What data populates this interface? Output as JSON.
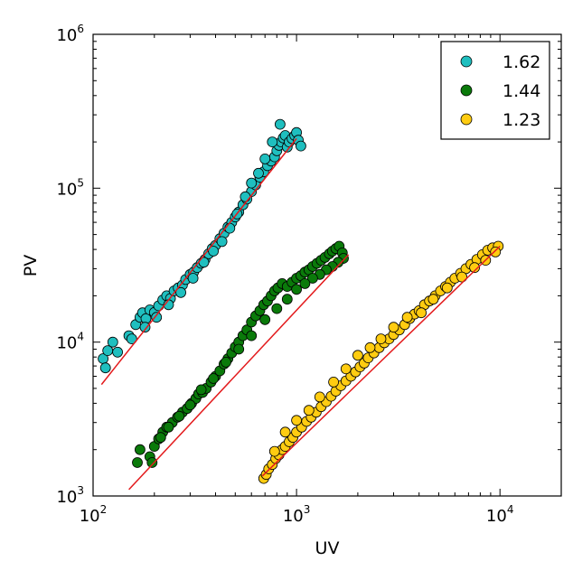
{
  "chart_data": {
    "type": "scatter",
    "title": "",
    "xlabel": "UV",
    "ylabel": "PV",
    "xscale": "log",
    "yscale": "log",
    "xlim": [
      100,
      20000
    ],
    "ylim": [
      1000,
      1000000
    ],
    "x_ticks": [
      {
        "base": "10",
        "exp": "2"
      },
      {
        "base": "10",
        "exp": "3"
      },
      {
        "base": "10",
        "exp": "4"
      }
    ],
    "y_ticks": [
      {
        "base": "10",
        "exp": "3"
      },
      {
        "base": "10",
        "exp": "4"
      },
      {
        "base": "10",
        "exp": "5"
      },
      {
        "base": "10",
        "exp": "6"
      }
    ],
    "legend_position": "top-right",
    "grid": false,
    "series": [
      {
        "name": "1.62",
        "color": "#1fbfbf",
        "fit_line": [
          [
            110,
            5300
          ],
          [
            1000,
            210000
          ]
        ],
        "points": [
          [
            112,
            7800
          ],
          [
            115,
            6800
          ],
          [
            118,
            8800
          ],
          [
            125,
            10000
          ],
          [
            132,
            8600
          ],
          [
            150,
            11000
          ],
          [
            155,
            10500
          ],
          [
            162,
            13000
          ],
          [
            170,
            14500
          ],
          [
            175,
            15500
          ],
          [
            182,
            14200
          ],
          [
            190,
            16200
          ],
          [
            200,
            15600
          ],
          [
            210,
            17200
          ],
          [
            220,
            18800
          ],
          [
            230,
            20000
          ],
          [
            240,
            19200
          ],
          [
            250,
            21500
          ],
          [
            262,
            22500
          ],
          [
            275,
            23500
          ],
          [
            285,
            25500
          ],
          [
            300,
            27500
          ],
          [
            312,
            28500
          ],
          [
            325,
            30500
          ],
          [
            340,
            32500
          ],
          [
            355,
            34500
          ],
          [
            370,
            37500
          ],
          [
            385,
            40500
          ],
          [
            400,
            42500
          ],
          [
            420,
            47000
          ],
          [
            440,
            51000
          ],
          [
            460,
            56000
          ],
          [
            480,
            60000
          ],
          [
            500,
            65000
          ],
          [
            520,
            70000
          ],
          [
            545,
            78000
          ],
          [
            570,
            85000
          ],
          [
            600,
            95000
          ],
          [
            630,
            105000
          ],
          [
            660,
            118000
          ],
          [
            690,
            128000
          ],
          [
            720,
            140000
          ],
          [
            750,
            150000
          ],
          [
            780,
            160000
          ],
          [
            800,
            175000
          ],
          [
            820,
            190000
          ],
          [
            840,
            200000
          ],
          [
            860,
            212000
          ],
          [
            880,
            220000
          ],
          [
            900,
            185000
          ],
          [
            920,
            200000
          ],
          [
            950,
            210000
          ],
          [
            980,
            220000
          ],
          [
            1000,
            230000
          ],
          [
            1020,
            205000
          ],
          [
            1050,
            188000
          ],
          [
            830,
            260000
          ],
          [
            760,
            200000
          ],
          [
            700,
            155000
          ],
          [
            650,
            125000
          ],
          [
            600,
            108000
          ],
          [
            560,
            88000
          ],
          [
            510,
            68000
          ],
          [
            470,
            55000
          ],
          [
            430,
            45000
          ],
          [
            390,
            39000
          ],
          [
            350,
            33000
          ],
          [
            310,
            26000
          ],
          [
            270,
            21000
          ],
          [
            235,
            17500
          ],
          [
            205,
            14500
          ],
          [
            180,
            12500
          ]
        ]
      },
      {
        "name": "1.44",
        "color": "#0a7a0a",
        "fit_line": [
          [
            150,
            1100
          ],
          [
            1800,
            37000
          ]
        ],
        "points": [
          [
            165,
            1650
          ],
          [
            170,
            2000
          ],
          [
            190,
            1800
          ],
          [
            195,
            1650
          ],
          [
            200,
            2100
          ],
          [
            210,
            2350
          ],
          [
            220,
            2600
          ],
          [
            230,
            2800
          ],
          [
            245,
            3000
          ],
          [
            260,
            3250
          ],
          [
            275,
            3500
          ],
          [
            290,
            3700
          ],
          [
            305,
            4000
          ],
          [
            320,
            4300
          ],
          [
            330,
            4600
          ],
          [
            345,
            4700
          ],
          [
            360,
            5000
          ],
          [
            380,
            5500
          ],
          [
            400,
            6000
          ],
          [
            420,
            6500
          ],
          [
            440,
            7200
          ],
          [
            460,
            7800
          ],
          [
            480,
            8500
          ],
          [
            500,
            9300
          ],
          [
            520,
            10000
          ],
          [
            545,
            11000
          ],
          [
            570,
            12000
          ],
          [
            600,
            13500
          ],
          [
            630,
            14800
          ],
          [
            660,
            16000
          ],
          [
            690,
            17500
          ],
          [
            720,
            18500
          ],
          [
            750,
            20000
          ],
          [
            780,
            21500
          ],
          [
            810,
            22500
          ],
          [
            850,
            24000
          ],
          [
            900,
            23000
          ],
          [
            950,
            24500
          ],
          [
            1000,
            26000
          ],
          [
            1050,
            27000
          ],
          [
            1100,
            28500
          ],
          [
            1150,
            29500
          ],
          [
            1200,
            31000
          ],
          [
            1260,
            32500
          ],
          [
            1320,
            34000
          ],
          [
            1380,
            35500
          ],
          [
            1450,
            37500
          ],
          [
            1500,
            39000
          ],
          [
            1560,
            40500
          ],
          [
            1620,
            42000
          ],
          [
            1680,
            38000
          ],
          [
            1700,
            35000
          ],
          [
            1600,
            33000
          ],
          [
            1500,
            31000
          ],
          [
            1400,
            29500
          ],
          [
            1300,
            27500
          ],
          [
            1200,
            26000
          ],
          [
            1100,
            24000
          ],
          [
            1000,
            22000
          ],
          [
            900,
            19000
          ],
          [
            800,
            16500
          ],
          [
            700,
            14000
          ],
          [
            600,
            11000
          ],
          [
            520,
            9000
          ],
          [
            450,
            7400
          ],
          [
            390,
            5800
          ],
          [
            340,
            4900
          ],
          [
            300,
            3900
          ],
          [
            265,
            3300
          ],
          [
            235,
            2800
          ],
          [
            215,
            2400
          ]
        ]
      },
      {
        "name": "1.23",
        "color": "#ffcc11",
        "fit_line": [
          [
            680,
            1350
          ],
          [
            10000,
            42000
          ]
        ],
        "points": [
          [
            690,
            1300
          ],
          [
            710,
            1380
          ],
          [
            730,
            1500
          ],
          [
            760,
            1600
          ],
          [
            790,
            1750
          ],
          [
            820,
            1850
          ],
          [
            850,
            2000
          ],
          [
            880,
            2100
          ],
          [
            920,
            2250
          ],
          [
            960,
            2400
          ],
          [
            1000,
            2600
          ],
          [
            1060,
            2800
          ],
          [
            1120,
            3050
          ],
          [
            1180,
            3250
          ],
          [
            1250,
            3500
          ],
          [
            1320,
            3800
          ],
          [
            1400,
            4100
          ],
          [
            1480,
            4450
          ],
          [
            1560,
            4800
          ],
          [
            1650,
            5200
          ],
          [
            1750,
            5600
          ],
          [
            1850,
            6000
          ],
          [
            1950,
            6400
          ],
          [
            2050,
            6900
          ],
          [
            2150,
            7300
          ],
          [
            2250,
            7900
          ],
          [
            2400,
            8500
          ],
          [
            2550,
            9200
          ],
          [
            2700,
            9900
          ],
          [
            2850,
            10500
          ],
          [
            3000,
            11200
          ],
          [
            3200,
            12000
          ],
          [
            3400,
            13000
          ],
          [
            3600,
            14200
          ],
          [
            3800,
            15200
          ],
          [
            4000,
            16000
          ],
          [
            4250,
            17500
          ],
          [
            4500,
            18500
          ],
          [
            4800,
            20000
          ],
          [
            5100,
            21500
          ],
          [
            5400,
            23000
          ],
          [
            5700,
            24500
          ],
          [
            6000,
            26000
          ],
          [
            6400,
            28000
          ],
          [
            6800,
            30000
          ],
          [
            7200,
            32000
          ],
          [
            7700,
            34500
          ],
          [
            8200,
            37000
          ],
          [
            8700,
            39500
          ],
          [
            9200,
            41000
          ],
          [
            9800,
            42000
          ],
          [
            9500,
            38500
          ],
          [
            8500,
            34000
          ],
          [
            7500,
            30500
          ],
          [
            6500,
            26500
          ],
          [
            5500,
            22500
          ],
          [
            4700,
            19000
          ],
          [
            4100,
            15500
          ],
          [
            3500,
            14500
          ],
          [
            3000,
            12500
          ],
          [
            2600,
            10500
          ],
          [
            2300,
            9200
          ],
          [
            2000,
            8200
          ],
          [
            1750,
            6700
          ],
          [
            1520,
            5500
          ],
          [
            1300,
            4400
          ],
          [
            1150,
            3600
          ],
          [
            1000,
            3100
          ],
          [
            880,
            2600
          ],
          [
            780,
            1950
          ]
        ]
      }
    ]
  }
}
